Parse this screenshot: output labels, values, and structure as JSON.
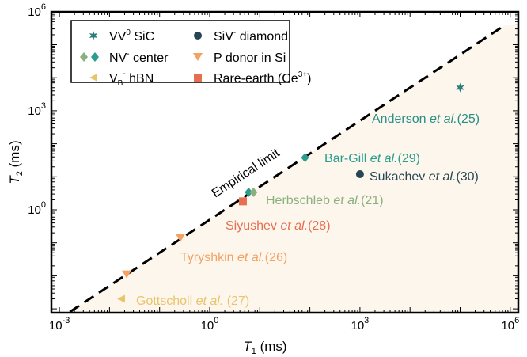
{
  "chart_data": {
    "type": "scatter",
    "xlabel": "T",
    "xlabel_sub": "1",
    "xlabel_unit": " (ms)",
    "ylabel": "T",
    "ylabel_sub": "2",
    "ylabel_unit": " (ms)",
    "xscale": "log",
    "yscale": "log",
    "xlim_log10": [
      -3,
      6
    ],
    "ylim_log10": [
      -3,
      6
    ],
    "xticks": [
      {
        "base": "10",
        "exp": "-3",
        "v": -3
      },
      {
        "base": "10",
        "exp": "0",
        "v": 0
      },
      {
        "base": "10",
        "exp": "3",
        "v": 3
      },
      {
        "base": "10",
        "exp": "6",
        "v": 6
      }
    ],
    "yticks": [
      {
        "base": "10",
        "exp": "0",
        "v": 0
      },
      {
        "base": "10",
        "exp": "3",
        "v": 3
      },
      {
        "base": "10",
        "exp": "6",
        "v": 6
      }
    ],
    "limit_line": {
      "label": "Empirical limit",
      "relation": "T2 = 0.5 * T1",
      "shade_below": "#fdf6ec"
    },
    "legend": {
      "placement": "top-left",
      "entries": [
        {
          "label": "VV",
          "sup": "0",
          "rest": "  SiC",
          "marker": "star",
          "color": "#2a7f7a"
        },
        {
          "label": "SiV",
          "sup": "-",
          "rest": "  diamond",
          "marker": "circle",
          "color": "#264653"
        },
        {
          "label": "NV",
          "sup": "-",
          "rest": " center",
          "marker": "diamond-pair",
          "color": "#2a9d8f",
          "color2": "#8ab17d"
        },
        {
          "label": "P donor in Si",
          "sup": "",
          "rest": "",
          "marker": "triangle-down",
          "color": "#f4a261"
        },
        {
          "label": "V",
          "sub": "B",
          "sup": "-",
          "rest": "  hBN",
          "marker": "triangle-left",
          "color": "#e9c46a"
        },
        {
          "label": "Rare-earth (Ce",
          "sup": "3+",
          "rest": ")",
          "marker": "square",
          "color": "#e76f51"
        }
      ]
    },
    "series": [
      {
        "name": "VV0 SiC",
        "marker": "star",
        "color": "#2a7f7a",
        "points": [
          {
            "t1": 100000,
            "t2": 5000
          }
        ]
      },
      {
        "name": "NV- center (Bar-Gill)",
        "marker": "diamond",
        "color": "#2a9d8f",
        "points": [
          {
            "t1": 80,
            "t2": 38
          },
          {
            "t1": 6,
            "t2": 3.4
          }
        ]
      },
      {
        "name": "NV- center (Herbschleb)",
        "marker": "diamond",
        "color": "#8ab17d",
        "points": [
          {
            "t1": 7.5,
            "t2": 3.4
          }
        ]
      },
      {
        "name": "SiV- diamond",
        "marker": "circle",
        "color": "#264653",
        "points": [
          {
            "t1": 1000,
            "t2": 12
          }
        ]
      },
      {
        "name": "Rare-earth (Ce3+)",
        "marker": "square",
        "color": "#e76f51",
        "points": [
          {
            "t1": 4.6,
            "t2": 1.8
          }
        ]
      },
      {
        "name": "P donor in Si",
        "marker": "triangle-down",
        "color": "#f4a261",
        "points": [
          {
            "t1": 0.26,
            "t2": 0.14
          },
          {
            "t1": 0.022,
            "t2": 0.011
          }
        ]
      },
      {
        "name": "VB- hBN",
        "marker": "triangle-left",
        "color": "#e9c46a",
        "points": [
          {
            "t1": 0.017,
            "t2": 0.002
          }
        ]
      }
    ],
    "annotations": [
      {
        "author": "Anderson",
        "etal": " et al.",
        "ref": "(25)",
        "color": "#2a8f86"
      },
      {
        "author": "Bar-Gill",
        "etal": " et al.",
        "ref": "(29)",
        "color": "#2a9d8f"
      },
      {
        "author": "Sukachev",
        "etal": " et al.",
        "ref": "(30)",
        "color": "#264653"
      },
      {
        "author": "Herbschleb",
        "etal": " et al.",
        "ref": "(21)",
        "color": "#8ab17d"
      },
      {
        "author": "Siyushev",
        "etal": " et al.",
        "ref": "(28)",
        "color": "#e76f51"
      },
      {
        "author": "Tyryshkin",
        "etal": " et al.",
        "ref": "(26)",
        "color": "#f4a261"
      },
      {
        "author": "Gottscholl",
        "etal": " et al.",
        "ref": " (27)",
        "color": "#e9c46a"
      }
    ]
  }
}
